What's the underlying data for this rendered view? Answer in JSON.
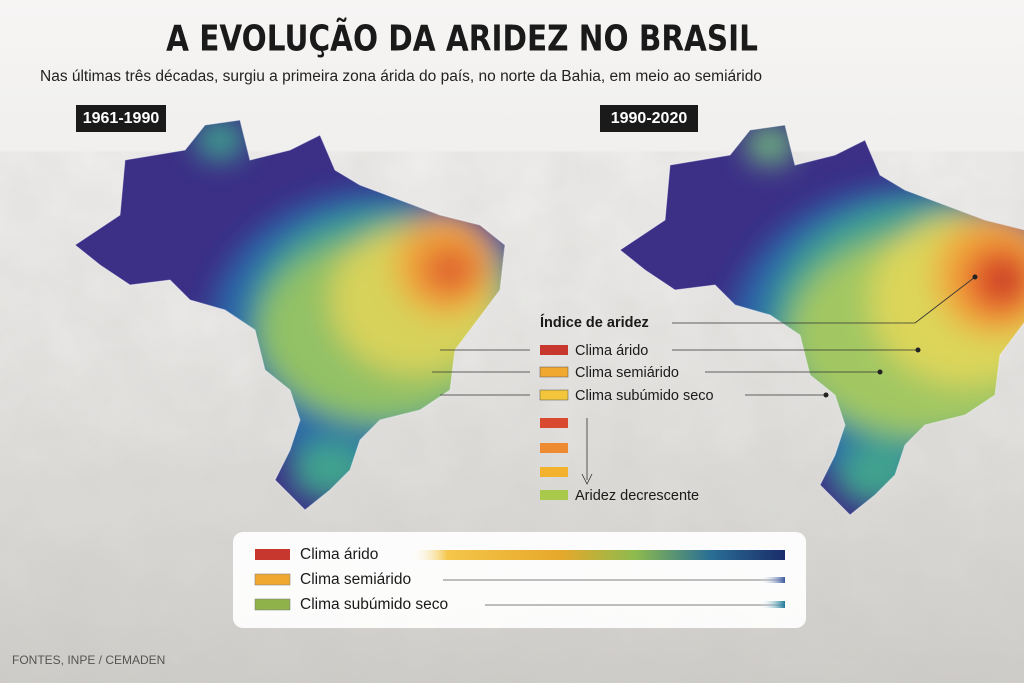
{
  "header": {
    "title": "A EVOLUÇÃO DA ARIDEZ NO BRASIL",
    "subtitle": "Nas últimas três décadas, surgiu a primeira zona árida do país, no norte da Bahia, em meio ao semiárido"
  },
  "maps": [
    {
      "label": "1961-1990"
    },
    {
      "label": "1990-2020"
    }
  ],
  "legend": {
    "title": "Índice de aridez",
    "items": [
      "Clima árido",
      "Clima semiárido",
      "Clima subúmido seco"
    ],
    "gradient_label": "Aridez decrescente"
  },
  "bottom_legend": {
    "items": [
      "Clima árido",
      "Clima semiárido",
      "Clima subúmido seco"
    ]
  },
  "source": "FONTES, INPE / CEMADEN"
}
